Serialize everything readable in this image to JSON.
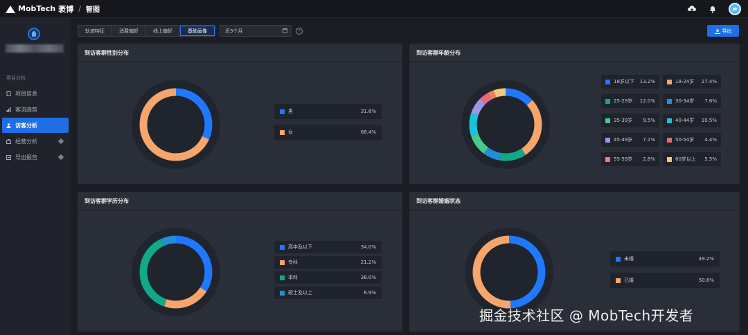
{
  "brand": {
    "name": "MobTech",
    "cn": "袤博",
    "sep": "/",
    "product": "智图"
  },
  "sidebar": {
    "section": "项目分析",
    "items": [
      {
        "label": "项目信息",
        "active": false,
        "premium": false
      },
      {
        "label": "客流趋势",
        "active": false,
        "premium": false
      },
      {
        "label": "访客分析",
        "active": true,
        "premium": false
      },
      {
        "label": "经营分析",
        "active": false,
        "premium": true
      },
      {
        "label": "导出报告",
        "active": false,
        "premium": true
      }
    ]
  },
  "toolbar": {
    "tabs": [
      "轨迹特征",
      "消费偏好",
      "线上偏好",
      "基础画像"
    ],
    "active_tab": 3,
    "date_range": "近3个月",
    "help": "?",
    "export_label": "导出"
  },
  "panels": {
    "gender": {
      "title": "到访客群性别分布",
      "items": [
        {
          "label": "男",
          "value": "31.6%",
          "pct": 31.6,
          "color": "#1f78ff"
        },
        {
          "label": "女",
          "value": "68.4%",
          "pct": 68.4,
          "color": "#f6a56b"
        }
      ]
    },
    "age": {
      "title": "到访客群年龄分布",
      "items": [
        {
          "label": "18岁以下",
          "value": "13.2%",
          "pct": 13.2,
          "color": "#1f78ff"
        },
        {
          "label": "18-24岁",
          "value": "27.4%",
          "pct": 27.4,
          "color": "#f6a56b"
        },
        {
          "label": "25-29岁",
          "value": "12.0%",
          "pct": 12.0,
          "color": "#10a98a"
        },
        {
          "label": "30-34岁",
          "value": "7.6%",
          "pct": 7.6,
          "color": "#1f8fd6"
        },
        {
          "label": "35-39岁",
          "value": "9.5%",
          "pct": 9.5,
          "color": "#47c98a"
        },
        {
          "label": "40-44岁",
          "value": "10.5%",
          "pct": 10.5,
          "color": "#17c4dd"
        },
        {
          "label": "45-49岁",
          "value": "7.1%",
          "pct": 7.1,
          "color": "#9c95e8"
        },
        {
          "label": "50-54岁",
          "value": "4.4%",
          "pct": 4.4,
          "color": "#e66b7a"
        },
        {
          "label": "55-59岁",
          "value": "2.8%",
          "pct": 2.8,
          "color": "#f07f5d"
        },
        {
          "label": "60岁以上",
          "value": "5.5%",
          "pct": 5.5,
          "color": "#f6c77a"
        }
      ]
    },
    "education": {
      "title": "到访客群学历分布",
      "items": [
        {
          "label": "高中及以下",
          "value": "34.0%",
          "pct": 34.0,
          "color": "#1f78ff"
        },
        {
          "label": "专科",
          "value": "21.2%",
          "pct": 21.2,
          "color": "#f6a56b"
        },
        {
          "label": "本科",
          "value": "38.0%",
          "pct": 38.0,
          "color": "#10a98a"
        },
        {
          "label": "硕士及以上",
          "value": "6.9%",
          "pct": 6.9,
          "color": "#1f8fd6"
        }
      ]
    },
    "marital": {
      "title": "到访客群婚姻状态",
      "items": [
        {
          "label": "未婚",
          "value": "49.2%",
          "pct": 49.2,
          "color": "#1f78ff"
        },
        {
          "label": "已婚",
          "value": "50.8%",
          "pct": 50.8,
          "color": "#f6a56b"
        }
      ]
    }
  },
  "watermark": "掘金技术社区 @ MobTech开发者"
}
